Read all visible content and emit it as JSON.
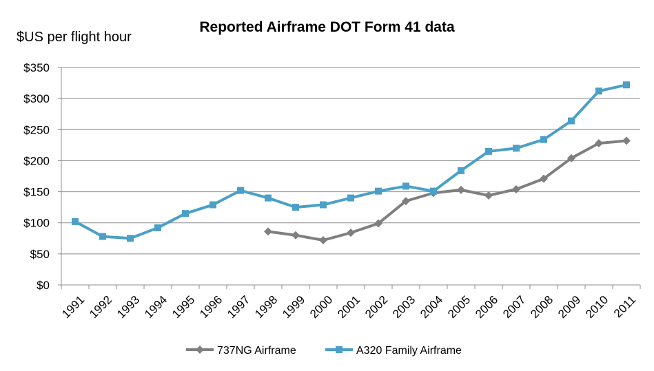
{
  "chart_data": {
    "type": "line",
    "title": "Reported Airframe DOT Form 41 data",
    "ylabel": "$US per flight hour",
    "xlabel": "",
    "ylim": [
      0,
      350
    ],
    "y_ticks": [
      "$0",
      "$50",
      "$100",
      "$150",
      "$200",
      "$250",
      "$300",
      "$350"
    ],
    "y_tick_values": [
      0,
      50,
      100,
      150,
      200,
      250,
      300,
      350
    ],
    "categories": [
      "1991",
      "1992",
      "1993",
      "1994",
      "1995",
      "1996",
      "1997",
      "1998",
      "1999",
      "2000",
      "2001",
      "2002",
      "2003",
      "2004",
      "2005",
      "2006",
      "2007",
      "2008",
      "2009",
      "2010",
      "2011"
    ],
    "grid": true,
    "legend_position": "bottom",
    "series": [
      {
        "name": "737NG Airframe",
        "marker": "diamond",
        "color": "#7f7f7f",
        "values": [
          null,
          null,
          null,
          null,
          null,
          null,
          null,
          86,
          80,
          72,
          84,
          99,
          135,
          148,
          153,
          144,
          154,
          171,
          204,
          228,
          232
        ]
      },
      {
        "name": "A320 Family Airframe",
        "marker": "square",
        "color": "#4aa0c8",
        "values": [
          102,
          78,
          75,
          92,
          115,
          129,
          152,
          140,
          125,
          129,
          140,
          151,
          159,
          151,
          184,
          215,
          220,
          234,
          264,
          312,
          322
        ]
      }
    ]
  }
}
